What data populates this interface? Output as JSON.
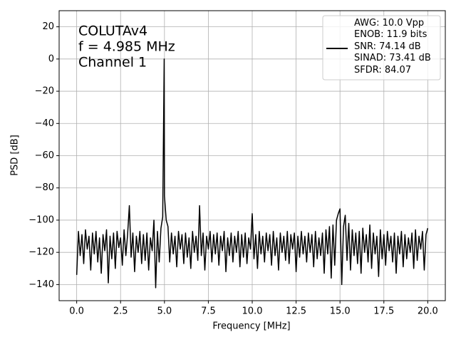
{
  "chart_data": {
    "type": "line",
    "annotation_lines": [
      "COLUTAv4",
      "f = 4.985 MHz",
      "Channel 1"
    ],
    "xlabel": "Frequency [MHz]",
    "ylabel": "PSD [dB]",
    "xlim": [
      -1.0,
      21.0
    ],
    "ylim": [
      -150,
      30
    ],
    "xticks": [
      {
        "value": 0,
        "label": "0.0"
      },
      {
        "value": 2.5,
        "label": "2.5"
      },
      {
        "value": 5,
        "label": "5.0"
      },
      {
        "value": 7.5,
        "label": "7.5"
      },
      {
        "value": 10,
        "label": "10.0"
      },
      {
        "value": 12.5,
        "label": "12.5"
      },
      {
        "value": 15,
        "label": "15.0"
      },
      {
        "value": 17.5,
        "label": "17.5"
      },
      {
        "value": 20,
        "label": "20.0"
      }
    ],
    "yticks": [
      20,
      0,
      {
        "value": -20,
        "label": "−20"
      },
      {
        "value": -40,
        "label": "−40"
      },
      {
        "value": -60,
        "label": "−60"
      },
      {
        "value": -80,
        "label": "−80"
      },
      {
        "value": -100,
        "label": "−100"
      },
      {
        "value": -120,
        "label": "−120"
      },
      {
        "value": -140,
        "label": "−140"
      }
    ],
    "grid": true,
    "legend": "upper right",
    "x": [
      0.0,
      0.1,
      0.2,
      0.3,
      0.4,
      0.5,
      0.6,
      0.7,
      0.8,
      0.9,
      1.0,
      1.1,
      1.2,
      1.3,
      1.4,
      1.5,
      1.6,
      1.7,
      1.8,
      1.9,
      2.0,
      2.1,
      2.2,
      2.3,
      2.4,
      2.5,
      2.6,
      2.7,
      2.8,
      2.9,
      3.0,
      3.1,
      3.2,
      3.3,
      3.4,
      3.5,
      3.6,
      3.7,
      3.8,
      3.9,
      4.0,
      4.1,
      4.2,
      4.3,
      4.4,
      4.5,
      4.6,
      4.7,
      4.8,
      4.9,
      4.985,
      5.0,
      5.1,
      5.2,
      5.3,
      5.4,
      5.5,
      5.6,
      5.7,
      5.8,
      5.9,
      6.0,
      6.1,
      6.2,
      6.3,
      6.4,
      6.5,
      6.6,
      6.7,
      6.8,
      6.9,
      7.0,
      7.1,
      7.2,
      7.3,
      7.4,
      7.5,
      7.6,
      7.7,
      7.8,
      7.9,
      8.0,
      8.1,
      8.2,
      8.3,
      8.4,
      8.5,
      8.6,
      8.7,
      8.8,
      8.9,
      9.0,
      9.1,
      9.2,
      9.3,
      9.4,
      9.5,
      9.6,
      9.7,
      9.8,
      9.9,
      10.0,
      10.1,
      10.2,
      10.3,
      10.4,
      10.5,
      10.6,
      10.7,
      10.8,
      10.9,
      11.0,
      11.1,
      11.2,
      11.3,
      11.4,
      11.5,
      11.6,
      11.7,
      11.8,
      11.9,
      12.0,
      12.1,
      12.2,
      12.3,
      12.4,
      12.5,
      12.6,
      12.7,
      12.8,
      12.9,
      13.0,
      13.1,
      13.2,
      13.3,
      13.4,
      13.5,
      13.6,
      13.7,
      13.8,
      13.9,
      14.0,
      14.1,
      14.2,
      14.3,
      14.4,
      14.5,
      14.6,
      14.7,
      14.8,
      14.9,
      15.0,
      15.1,
      15.2,
      15.3,
      15.4,
      15.5,
      15.6,
      15.7,
      15.8,
      15.9,
      16.0,
      16.1,
      16.2,
      16.3,
      16.4,
      16.5,
      16.6,
      16.7,
      16.8,
      16.9,
      17.0,
      17.1,
      17.2,
      17.3,
      17.4,
      17.5,
      17.6,
      17.7,
      17.8,
      17.9,
      18.0,
      18.1,
      18.2,
      18.3,
      18.4,
      18.5,
      18.6,
      18.7,
      18.8,
      18.9,
      19.0,
      19.1,
      19.2,
      19.3,
      19.4,
      19.5,
      19.6,
      19.7,
      19.8,
      19.9,
      20.0
    ],
    "series": [
      {
        "name": "AWG: 10.0 Vpp\nENOB: 11.9 bits\nSNR: 74.14 dB\nSINAD: 73.41 dB\nSFDR: 84.07",
        "color": "#000000",
        "values": [
          -134,
          -107,
          -122,
          -109,
          -127,
          -106,
          -118,
          -110,
          -131,
          -108,
          -121,
          -107,
          -126,
          -111,
          -133,
          -109,
          -119,
          -106,
          -139,
          -110,
          -124,
          -108,
          -130,
          -107,
          -117,
          -111,
          -128,
          -106,
          -122,
          -109,
          -91,
          -123,
          -108,
          -132,
          -110,
          -120,
          -107,
          -127,
          -109,
          -125,
          -108,
          -131,
          -111,
          -119,
          -100,
          -142,
          -107,
          -126,
          -105,
          -98,
          0,
          -85,
          -100,
          -104,
          -126,
          -108,
          -121,
          -110,
          -129,
          -107,
          -118,
          -109,
          -127,
          -108,
          -123,
          -111,
          -130,
          -107,
          -120,
          -110,
          -125,
          -91,
          -122,
          -108,
          -131,
          -110,
          -118,
          -107,
          -126,
          -109,
          -121,
          -108,
          -128,
          -110,
          -119,
          -107,
          -132,
          -111,
          -122,
          -108,
          -126,
          -110,
          -120,
          -107,
          -129,
          -109,
          -123,
          -108,
          -127,
          -111,
          -118,
          -96,
          -124,
          -109,
          -130,
          -107,
          -121,
          -110,
          -126,
          -108,
          -119,
          -109,
          -128,
          -107,
          -122,
          -111,
          -131,
          -108,
          -120,
          -110,
          -125,
          -107,
          -127,
          -109,
          -118,
          -108,
          -132,
          -110,
          -123,
          -107,
          -121,
          -110,
          -126,
          -108,
          -120,
          -109,
          -129,
          -107,
          -124,
          -111,
          -122,
          -108,
          -133,
          -106,
          -121,
          -104,
          -136,
          -103,
          -128,
          -100,
          -96,
          -93,
          -140,
          -104,
          -97,
          -125,
          -102,
          -131,
          -106,
          -122,
          -108,
          -127,
          -107,
          -133,
          -105,
          -120,
          -109,
          -126,
          -103,
          -130,
          -108,
          -121,
          -110,
          -135,
          -106,
          -124,
          -109,
          -128,
          -107,
          -119,
          -110,
          -126,
          -108,
          -133,
          -110,
          -121,
          -107,
          -129,
          -109,
          -124,
          -111,
          -120,
          -108,
          -130,
          -106,
          -125,
          -110,
          -118,
          -107,
          -131,
          -109,
          -105
        ]
      }
    ]
  }
}
